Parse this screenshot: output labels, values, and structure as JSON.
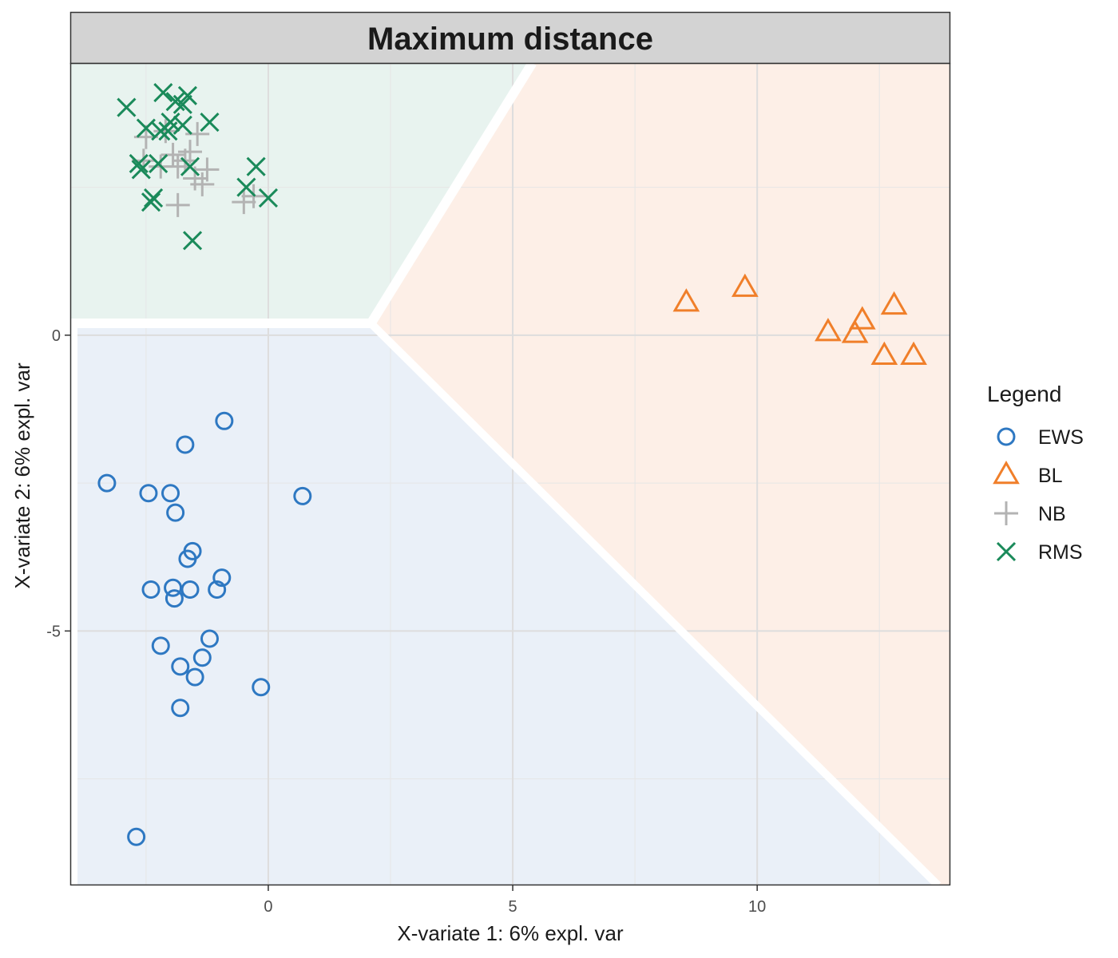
{
  "chart_data": {
    "type": "scatter",
    "title": "Maximum distance",
    "xlabel": "X-variate 1: 6% expl. var",
    "ylabel": "X-variate 2: 6% expl. var",
    "xlim": [
      -4.05,
      13.95
    ],
    "ylim": [
      -9.3,
      4.6
    ],
    "x_ticks": [
      0,
      5,
      10
    ],
    "y_ticks": [
      -5,
      0
    ],
    "grid": true,
    "legend": {
      "title": "Legend",
      "position": "right"
    },
    "regions": [
      {
        "class": "RMS",
        "color": "#e8f3ef",
        "vertices": [
          [
            -4.05,
            4.6
          ],
          [
            5.4,
            4.6
          ],
          [
            2.1,
            0.2
          ],
          [
            -4.05,
            0.2
          ]
        ]
      },
      {
        "class": "BL",
        "color": "#fdefe7",
        "vertices": [
          [
            5.4,
            4.6
          ],
          [
            13.95,
            4.6
          ],
          [
            13.95,
            -9.3
          ],
          [
            13.7,
            -9.3
          ],
          [
            2.1,
            0.2
          ]
        ]
      },
      {
        "class": "EWS",
        "color": "#eaf0f8",
        "vertices": [
          [
            -4.05,
            0.2
          ],
          [
            2.1,
            0.2
          ],
          [
            13.7,
            -9.3
          ],
          [
            -4.05,
            -9.3
          ]
        ]
      }
    ],
    "series": [
      {
        "name": "EWS",
        "marker": "circle",
        "color": "#2e78c2",
        "points": [
          [
            -0.9,
            -1.45
          ],
          [
            -1.7,
            -1.85
          ],
          [
            -3.3,
            -2.5
          ],
          [
            -2.45,
            -2.67
          ],
          [
            -2.0,
            -2.67
          ],
          [
            0.7,
            -2.72
          ],
          [
            -1.9,
            -3.0
          ],
          [
            -1.55,
            -3.65
          ],
          [
            -1.65,
            -3.78
          ],
          [
            -0.95,
            -4.1
          ],
          [
            -2.4,
            -4.3
          ],
          [
            -1.95,
            -4.27
          ],
          [
            -1.6,
            -4.3
          ],
          [
            -1.05,
            -4.3
          ],
          [
            -1.92,
            -4.45
          ],
          [
            -1.2,
            -5.13
          ],
          [
            -2.2,
            -5.25
          ],
          [
            -1.35,
            -5.45
          ],
          [
            -1.8,
            -5.6
          ],
          [
            -1.5,
            -5.78
          ],
          [
            -0.15,
            -5.95
          ],
          [
            -1.8,
            -6.3
          ],
          [
            -2.7,
            -8.48
          ]
        ]
      },
      {
        "name": "BL",
        "marker": "triangle",
        "color": "#f07f2a",
        "points": [
          [
            8.55,
            0.55
          ],
          [
            9.75,
            0.8
          ],
          [
            11.45,
            0.05
          ],
          [
            12.15,
            0.25
          ],
          [
            12.0,
            0.02
          ],
          [
            12.8,
            0.5
          ],
          [
            12.6,
            -0.35
          ],
          [
            13.2,
            -0.35
          ]
        ]
      },
      {
        "name": "NB",
        "marker": "plus",
        "color": "#b3b3b3",
        "points": [
          [
            -2.1,
            3.45
          ],
          [
            -2.5,
            3.35
          ],
          [
            -1.45,
            3.4
          ],
          [
            -2.55,
            2.95
          ],
          [
            -1.95,
            3.05
          ],
          [
            -1.6,
            3.1
          ],
          [
            -1.85,
            2.85
          ],
          [
            -2.2,
            2.85
          ],
          [
            -1.7,
            2.95
          ],
          [
            -1.25,
            2.8
          ],
          [
            -1.5,
            2.65
          ],
          [
            -1.35,
            2.55
          ],
          [
            -1.85,
            2.2
          ],
          [
            -0.5,
            2.25
          ],
          [
            -0.3,
            2.35
          ]
        ]
      },
      {
        "name": "RMS",
        "marker": "x",
        "color": "#1a8a5a",
        "points": [
          [
            -2.15,
            4.1
          ],
          [
            -1.9,
            3.95
          ],
          [
            -1.65,
            4.05
          ],
          [
            -1.75,
            3.9
          ],
          [
            -2.9,
            3.85
          ],
          [
            -2.0,
            3.6
          ],
          [
            -1.75,
            3.55
          ],
          [
            -1.2,
            3.6
          ],
          [
            -2.5,
            3.5
          ],
          [
            -2.2,
            3.45
          ],
          [
            -2.05,
            3.45
          ],
          [
            -0.25,
            2.85
          ],
          [
            -2.25,
            2.9
          ],
          [
            -1.6,
            2.85
          ],
          [
            -2.6,
            2.8
          ],
          [
            -2.65,
            2.9
          ],
          [
            -0.45,
            2.5
          ],
          [
            0.0,
            2.32
          ],
          [
            -2.35,
            2.32
          ],
          [
            -2.4,
            2.25
          ],
          [
            -1.55,
            1.6
          ]
        ]
      }
    ]
  }
}
